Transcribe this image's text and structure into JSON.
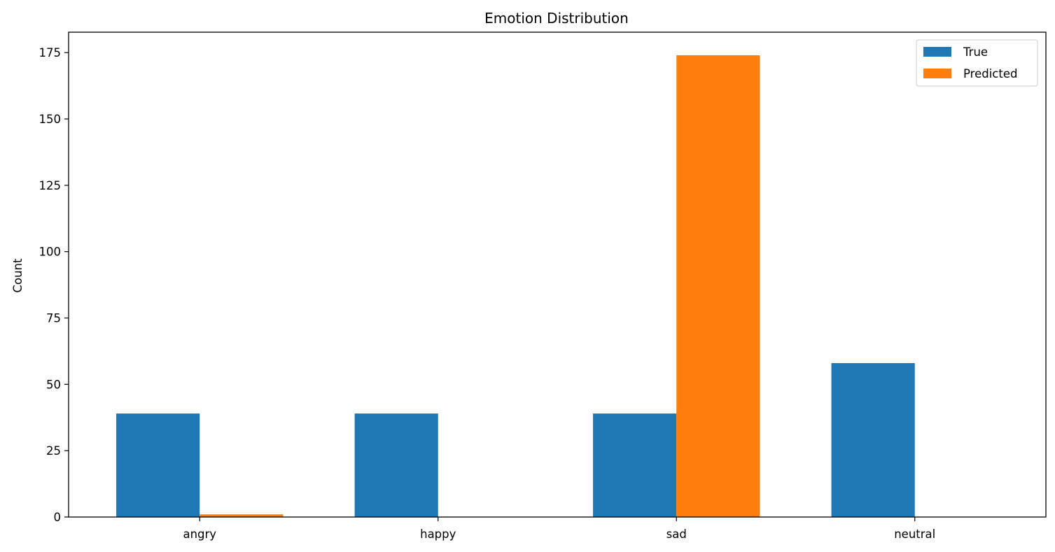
{
  "chart_data": {
    "type": "bar",
    "title": "Emotion Distribution",
    "xlabel": "",
    "ylabel": "Count",
    "categories": [
      "angry",
      "happy",
      "sad",
      "neutral"
    ],
    "series": [
      {
        "name": "True",
        "color": "#1f77b4",
        "values": [
          39,
          39,
          39,
          58
        ]
      },
      {
        "name": "Predicted",
        "color": "#ff7f0e",
        "values": [
          1,
          0,
          174,
          0
        ]
      }
    ],
    "ylim": [
      0,
      182.7
    ],
    "yticks": [
      0,
      25,
      50,
      75,
      100,
      125,
      150,
      175
    ],
    "grid": false,
    "legend": "top-right"
  }
}
